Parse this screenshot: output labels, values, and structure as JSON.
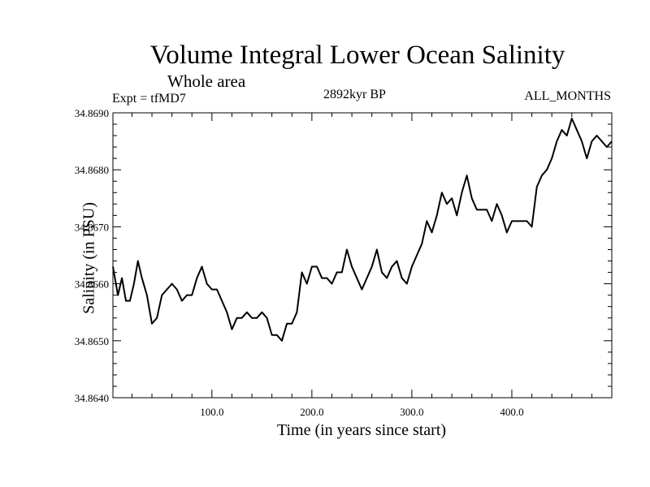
{
  "chart_data": {
    "type": "line",
    "title": "Volume Integral Lower Ocean Salinity",
    "subtitle": "Whole area",
    "experiment_label": "Expt = tfMD7",
    "period_label": "2892kyr BP",
    "months_label": "ALL_MONTHS",
    "xlabel": "Time (in years since start)",
    "ylabel": "Salinity (in PSU)",
    "xlim": [
      1,
      500
    ],
    "ylim": [
      34.864,
      34.869
    ],
    "x_ticks": [
      100,
      200,
      300,
      400
    ],
    "x_tick_labels": [
      "100.0",
      "200.0",
      "300.0",
      "400.0"
    ],
    "y_ticks": [
      34.864,
      34.865,
      34.866,
      34.867,
      34.868,
      34.869
    ],
    "y_tick_labels": [
      "34.8640",
      "34.8650",
      "34.8660",
      "34.8670",
      "34.8680",
      "34.8690"
    ],
    "grid": false,
    "series": [
      {
        "name": "Salinity",
        "x": [
          1,
          6,
          10,
          14,
          18,
          22,
          26,
          30,
          35,
          40,
          45,
          50,
          55,
          60,
          65,
          70,
          75,
          80,
          85,
          90,
          95,
          100,
          105,
          110,
          115,
          120,
          125,
          130,
          135,
          140,
          145,
          150,
          155,
          160,
          165,
          170,
          175,
          180,
          185,
          190,
          195,
          200,
          205,
          210,
          215,
          220,
          225,
          230,
          235,
          240,
          245,
          250,
          255,
          260,
          265,
          270,
          275,
          280,
          285,
          290,
          295,
          300,
          305,
          310,
          315,
          320,
          325,
          330,
          335,
          340,
          345,
          350,
          355,
          360,
          365,
          370,
          375,
          380,
          385,
          390,
          395,
          400,
          405,
          410,
          415,
          420,
          425,
          430,
          435,
          440,
          445,
          450,
          455,
          460,
          465,
          470,
          475,
          480,
          485,
          490,
          495,
          500
        ],
        "values": [
          34.8663,
          34.8658,
          34.8661,
          34.8657,
          34.8657,
          34.866,
          34.8664,
          34.8661,
          34.8658,
          34.8653,
          34.8654,
          34.8658,
          34.8659,
          34.866,
          34.8659,
          34.8657,
          34.8658,
          34.8658,
          34.8661,
          34.8663,
          34.866,
          34.8659,
          34.8659,
          34.8657,
          34.8655,
          34.8652,
          34.8654,
          34.8654,
          34.8655,
          34.8654,
          34.8654,
          34.8655,
          34.8654,
          34.8651,
          34.8651,
          34.865,
          34.8653,
          34.8653,
          34.8655,
          34.8662,
          34.866,
          34.8663,
          34.8663,
          34.8661,
          34.8661,
          34.866,
          34.8662,
          34.8662,
          34.8666,
          34.8663,
          34.8661,
          34.8659,
          34.8661,
          34.8663,
          34.8666,
          34.8662,
          34.8661,
          34.8663,
          34.8664,
          34.8661,
          34.866,
          34.8663,
          34.8665,
          34.8667,
          34.8671,
          34.8669,
          34.8672,
          34.8676,
          34.8674,
          34.8675,
          34.8672,
          34.8676,
          34.8679,
          34.8675,
          34.8673,
          34.8673,
          34.8673,
          34.8671,
          34.8674,
          34.8672,
          34.8669,
          34.8671,
          34.8671,
          34.8671,
          34.8671,
          34.867,
          34.8677,
          34.8679,
          34.868,
          34.8682,
          34.8685,
          34.8687,
          34.8686,
          34.8689,
          34.8687,
          34.8685,
          34.8682,
          34.8685,
          34.8686,
          34.8685,
          34.8684,
          34.8685
        ]
      }
    ]
  }
}
